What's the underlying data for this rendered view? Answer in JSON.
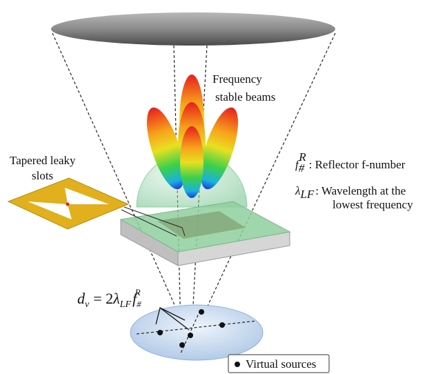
{
  "labels": {
    "beams": [
      "Frequency",
      "stable beams"
    ],
    "slots": [
      "Tapered leaky",
      "slots"
    ]
  },
  "legend": [
    {
      "symbol": "f",
      "sub": "#",
      "sup": "R",
      "text": ": Reflector f-number"
    },
    {
      "symbol": "λ",
      "sub": "LF",
      "lines": [
        ": Wavelength at the",
        "lowest frequency"
      ]
    }
  ],
  "equation": {
    "lhs": "d",
    "lhs_sub": "v",
    "eq": "= 2",
    "lambda": "λ",
    "lambda_sub": "LF",
    "f": "f",
    "f_sub": "#",
    "f_sup": "R"
  },
  "sources_legend": "Virtual sources"
}
